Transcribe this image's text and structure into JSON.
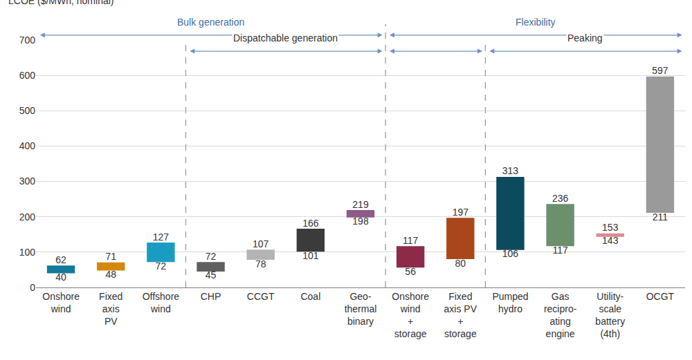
{
  "chart_data": {
    "type": "floating_bar",
    "y_label": "LCOE ($/MWh, nominal)",
    "categories": [
      "Onshore\nwind",
      "Fixed\naxis\nPV",
      "Offshore\nwind",
      "CHP",
      "CCGT",
      "Coal",
      "Geo-\nthermal\nbinary",
      "Onshore\nwind\n+\nstorage",
      "Fixed\naxis PV\n+\nstorage",
      "Pumped\nhydro",
      "Gas\nrecipro-\nating\nengine",
      "Utility-\nscale\nbattery\n(4th)",
      "OCGT"
    ],
    "low": [
      40,
      48,
      72,
      45,
      78,
      101,
      198,
      56,
      80,
      106,
      117,
      143,
      211
    ],
    "high": [
      62,
      71,
      127,
      72,
      107,
      166,
      219,
      117,
      197,
      313,
      236,
      153,
      597
    ],
    "colors": [
      "#14799b",
      "#d4870f",
      "#1a9cc2",
      "#5f5f5f",
      "#b3b3b3",
      "#3b3b3b",
      "#8e5a8a",
      "#8c2a47",
      "#a9471a",
      "#0d4a5e",
      "#6c8f6c",
      "#d98a95",
      "#9a9a9a"
    ],
    "groups": [
      {
        "label": "Bulk generation",
        "first": 0,
        "last": 6,
        "level": 1
      },
      {
        "label": "Flexibility",
        "first": 7,
        "last": 12,
        "level": 1
      },
      {
        "label": "Dispatchable generation",
        "first": 3,
        "last": 6,
        "level": 2
      },
      {
        "label": "Peaking",
        "first": 9,
        "last": 12,
        "level": 2
      }
    ],
    "ylim": [
      0,
      700
    ],
    "yticks": [
      0,
      100,
      200,
      300,
      400,
      500,
      600,
      700
    ],
    "grid": true,
    "data_labels": true
  }
}
